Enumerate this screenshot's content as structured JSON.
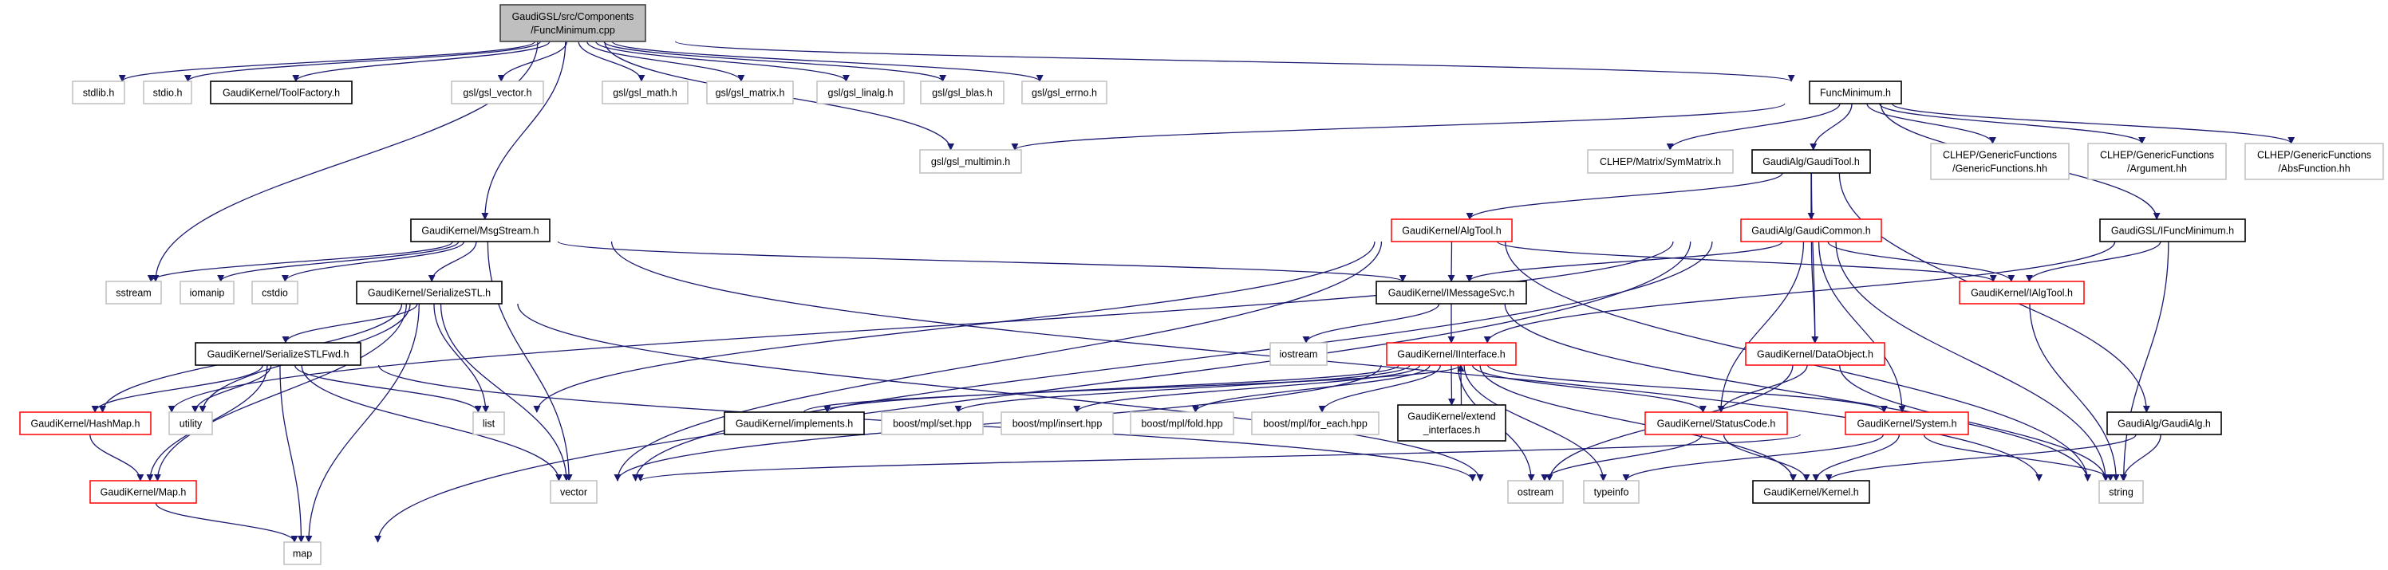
{
  "diagram": {
    "colors": {
      "edge": "#191970",
      "undocumented_border": "#bfbfbf",
      "documented_border": "#000000",
      "truncated_border": "#ff0000",
      "root_fill": "#bfbfbf"
    },
    "nodes": {
      "root": {
        "lines": [
          "GaudiGSL/src/Components",
          "/FuncMinimum.cpp"
        ],
        "style": "root"
      },
      "stdlib": {
        "lines": [
          "stdlib.h"
        ],
        "style": "undocumented"
      },
      "stdio": {
        "lines": [
          "stdio.h"
        ],
        "style": "undocumented"
      },
      "toolfactory": {
        "lines": [
          "GaudiKernel/ToolFactory.h"
        ],
        "style": "documented"
      },
      "gsl_vector": {
        "lines": [
          "gsl/gsl_vector.h"
        ],
        "style": "undocumented"
      },
      "gsl_math": {
        "lines": [
          "gsl/gsl_math.h"
        ],
        "style": "undocumented"
      },
      "gsl_matrix": {
        "lines": [
          "gsl/gsl_matrix.h"
        ],
        "style": "undocumented"
      },
      "gsl_linalg": {
        "lines": [
          "gsl/gsl_linalg.h"
        ],
        "style": "undocumented"
      },
      "gsl_blas": {
        "lines": [
          "gsl/gsl_blas.h"
        ],
        "style": "undocumented"
      },
      "gsl_errno": {
        "lines": [
          "gsl/gsl_errno.h"
        ],
        "style": "undocumented"
      },
      "funcmin_h": {
        "lines": [
          "FuncMinimum.h"
        ],
        "style": "documented"
      },
      "gsl_multimin": {
        "lines": [
          "gsl/gsl_multimin.h"
        ],
        "style": "undocumented"
      },
      "symmatrix": {
        "lines": [
          "CLHEP/Matrix/SymMatrix.h"
        ],
        "style": "undocumented"
      },
      "gauditool": {
        "lines": [
          "GaudiAlg/GaudiTool.h"
        ],
        "style": "documented"
      },
      "genfunc": {
        "lines": [
          "CLHEP/GenericFunctions",
          "/GenericFunctions.hh"
        ],
        "style": "undocumented"
      },
      "argument": {
        "lines": [
          "CLHEP/GenericFunctions",
          "/Argument.hh"
        ],
        "style": "undocumented"
      },
      "absfunc": {
        "lines": [
          "CLHEP/GenericFunctions",
          "/AbsFunction.hh"
        ],
        "style": "undocumented"
      },
      "msgstream": {
        "lines": [
          "GaudiKernel/MsgStream.h"
        ],
        "style": "documented"
      },
      "algtool": {
        "lines": [
          "GaudiKernel/AlgTool.h"
        ],
        "style": "truncated"
      },
      "gaudicommon": {
        "lines": [
          "GaudiAlg/GaudiCommon.h"
        ],
        "style": "truncated"
      },
      "ifuncmin": {
        "lines": [
          "GaudiGSL/IFuncMinimum.h"
        ],
        "style": "documented"
      },
      "sstream": {
        "lines": [
          "sstream"
        ],
        "style": "undocumented"
      },
      "iomanip": {
        "lines": [
          "iomanip"
        ],
        "style": "undocumented"
      },
      "cstdio": {
        "lines": [
          "cstdio"
        ],
        "style": "undocumented"
      },
      "serializestl": {
        "lines": [
          "GaudiKernel/SerializeSTL.h"
        ],
        "style": "documented"
      },
      "imessagesvc": {
        "lines": [
          "GaudiKernel/IMessageSvc.h"
        ],
        "style": "documented"
      },
      "ialgtool": {
        "lines": [
          "GaudiKernel/IAlgTool.h"
        ],
        "style": "truncated"
      },
      "serializestlfwd": {
        "lines": [
          "GaudiKernel/SerializeSTLFwd.h"
        ],
        "style": "documented"
      },
      "iostream": {
        "lines": [
          "iostream"
        ],
        "style": "undocumented"
      },
      "iinterface": {
        "lines": [
          "GaudiKernel/IInterface.h"
        ],
        "style": "truncated"
      },
      "dataobject": {
        "lines": [
          "GaudiKernel/DataObject.h"
        ],
        "style": "truncated"
      },
      "hashmap": {
        "lines": [
          "GaudiKernel/HashMap.h"
        ],
        "style": "truncated"
      },
      "utility": {
        "lines": [
          "utility"
        ],
        "style": "undocumented"
      },
      "list": {
        "lines": [
          "list"
        ],
        "style": "undocumented"
      },
      "implements": {
        "lines": [
          "GaudiKernel/implements.h"
        ],
        "style": "documented"
      },
      "set": {
        "lines": [
          "boost/mpl/set.hpp"
        ],
        "style": "undocumented"
      },
      "insert": {
        "lines": [
          "boost/mpl/insert.hpp"
        ],
        "style": "undocumented"
      },
      "fold": {
        "lines": [
          "boost/mpl/fold.hpp"
        ],
        "style": "undocumented"
      },
      "foreach": {
        "lines": [
          "boost/mpl/for_each.hpp"
        ],
        "style": "undocumented"
      },
      "extend": {
        "lines": [
          "GaudiKernel/extend",
          "_interfaces.h"
        ],
        "style": "documented"
      },
      "statuscode": {
        "lines": [
          "GaudiKernel/StatusCode.h"
        ],
        "style": "truncated"
      },
      "system": {
        "lines": [
          "GaudiKernel/System.h"
        ],
        "style": "truncated"
      },
      "gaudialg": {
        "lines": [
          "GaudiAlg/GaudiAlg.h"
        ],
        "style": "documented"
      },
      "map_h": {
        "lines": [
          "GaudiKernel/Map.h"
        ],
        "style": "truncated"
      },
      "vector": {
        "lines": [
          "vector"
        ],
        "style": "undocumented"
      },
      "ostream": {
        "lines": [
          "ostream"
        ],
        "style": "undocumented"
      },
      "typeinfo": {
        "lines": [
          "typeinfo"
        ],
        "style": "undocumented"
      },
      "kernel": {
        "lines": [
          "GaudiKernel/Kernel.h"
        ],
        "style": "documented"
      },
      "string": {
        "lines": [
          "string"
        ],
        "style": "undocumented"
      },
      "map": {
        "lines": [
          "map"
        ],
        "style": "undocumented"
      }
    },
    "edges": [
      [
        "root",
        "stdlib"
      ],
      [
        "root",
        "stdio"
      ],
      [
        "root",
        "toolfactory"
      ],
      [
        "root",
        "gsl_vector"
      ],
      [
        "root",
        "gsl_math"
      ],
      [
        "root",
        "gsl_matrix"
      ],
      [
        "root",
        "gsl_linalg"
      ],
      [
        "root",
        "gsl_blas"
      ],
      [
        "root",
        "gsl_errno"
      ],
      [
        "root",
        "funcmin_h"
      ],
      [
        "root",
        "gsl_multimin"
      ],
      [
        "root",
        "msgstream"
      ],
      [
        "root",
        "sstream"
      ],
      [
        "funcmin_h",
        "gsl_multimin"
      ],
      [
        "funcmin_h",
        "symmatrix"
      ],
      [
        "funcmin_h",
        "gauditool"
      ],
      [
        "funcmin_h",
        "genfunc"
      ],
      [
        "funcmin_h",
        "argument"
      ],
      [
        "funcmin_h",
        "absfunc"
      ],
      [
        "funcmin_h",
        "ifuncmin"
      ],
      [
        "gauditool",
        "algtool"
      ],
      [
        "gauditool",
        "gaudicommon"
      ],
      [
        "gauditool",
        "dataobject"
      ],
      [
        "gauditool",
        "gaudialg"
      ],
      [
        "algtool",
        "imessagesvc"
      ],
      [
        "algtool",
        "ialgtool"
      ],
      [
        "algtool",
        "list"
      ],
      [
        "algtool",
        "vector"
      ],
      [
        "algtool",
        "string"
      ],
      [
        "gaudicommon",
        "imessagesvc"
      ],
      [
        "gaudicommon",
        "ialgtool"
      ],
      [
        "gaudicommon",
        "statuscode"
      ],
      [
        "gaudicommon",
        "system"
      ],
      [
        "gaudicommon",
        "vector"
      ],
      [
        "gaudicommon",
        "string"
      ],
      [
        "gaudicommon",
        "map"
      ],
      [
        "gaudicommon",
        "dataobject"
      ],
      [
        "gaudicommon",
        "hashmap"
      ],
      [
        "ifuncmin",
        "ialgtool"
      ],
      [
        "ifuncmin",
        "string"
      ],
      [
        "ifuncmin",
        "iinterface"
      ],
      [
        "msgstream",
        "sstream"
      ],
      [
        "msgstream",
        "iomanip"
      ],
      [
        "msgstream",
        "cstdio"
      ],
      [
        "msgstream",
        "serializestl"
      ],
      [
        "msgstream",
        "imessagesvc"
      ],
      [
        "msgstream",
        "vector"
      ],
      [
        "msgstream",
        "string"
      ],
      [
        "serializestl",
        "serializestlfwd"
      ],
      [
        "serializestl",
        "hashmap"
      ],
      [
        "serializestl",
        "map_h"
      ],
      [
        "serializestl",
        "utility"
      ],
      [
        "serializestl",
        "list"
      ],
      [
        "serializestl",
        "vector"
      ],
      [
        "serializestl",
        "map"
      ],
      [
        "serializestl",
        "ostream"
      ],
      [
        "serializestlfwd",
        "hashmap"
      ],
      [
        "serializestlfwd",
        "utility"
      ],
      [
        "serializestlfwd",
        "map_h"
      ],
      [
        "serializestlfwd",
        "map"
      ],
      [
        "serializestlfwd",
        "list"
      ],
      [
        "serializestlfwd",
        "vector"
      ],
      [
        "serializestlfwd",
        "ostream"
      ],
      [
        "hashmap",
        "map_h"
      ],
      [
        "map_h",
        "map"
      ],
      [
        "imessagesvc",
        "iostream"
      ],
      [
        "imessagesvc",
        "iinterface"
      ],
      [
        "imessagesvc",
        "string"
      ],
      [
        "iinterface",
        "implements"
      ],
      [
        "iinterface",
        "set"
      ],
      [
        "iinterface",
        "insert"
      ],
      [
        "iinterface",
        "fold"
      ],
      [
        "iinterface",
        "foreach"
      ],
      [
        "iinterface",
        "extend"
      ],
      [
        "iinterface",
        "ostream"
      ],
      [
        "iinterface",
        "typeinfo"
      ],
      [
        "iinterface",
        "statuscode"
      ],
      [
        "iinterface",
        "system"
      ],
      [
        "iinterface",
        "kernel"
      ],
      [
        "iinterface",
        "vector"
      ],
      [
        "extend",
        "iinterface"
      ],
      [
        "implements",
        "iinterface"
      ],
      [
        "ialgtool",
        "string"
      ],
      [
        "dataobject",
        "statuscode"
      ],
      [
        "dataobject",
        "ostream"
      ],
      [
        "dataobject",
        "string"
      ],
      [
        "statuscode",
        "ostream"
      ],
      [
        "statuscode",
        "kernel"
      ],
      [
        "system",
        "kernel"
      ],
      [
        "system",
        "typeinfo"
      ],
      [
        "system",
        "string"
      ],
      [
        "system",
        "vector"
      ],
      [
        "gaudialg",
        "kernel"
      ],
      [
        "gaudialg",
        "string"
      ]
    ]
  }
}
